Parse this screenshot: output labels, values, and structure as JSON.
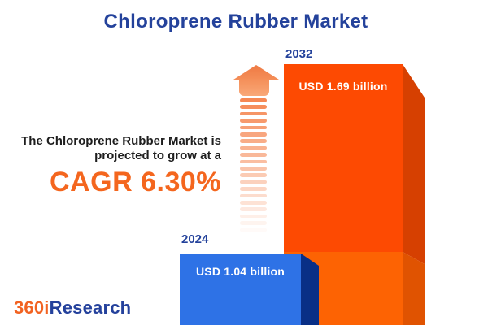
{
  "title": "Chloroprene Rubber Market",
  "annotation": {
    "line1": "The Chloroprene Rubber Market is",
    "line2": "projected to grow at a",
    "cagr_label": "CAGR 6.30%"
  },
  "chart_data": {
    "type": "bar",
    "title": "Chloroprene Rubber Market",
    "categories": [
      "2024",
      "2032"
    ],
    "values": [
      1.04,
      1.69
    ],
    "unit": "USD billion",
    "cagr_percent": 6.3,
    "ylim": [
      0,
      1.69
    ],
    "grid": false,
    "legend": false,
    "orientation": "vertical",
    "bars": [
      {
        "year": "2024",
        "value": 1.04,
        "value_label": "USD 1.04 billion",
        "front_color": "#2E72E6",
        "side_color": "#092F86"
      },
      {
        "year": "2032",
        "value": 1.69,
        "value_label": "USD 1.69 billion",
        "front_color": "#FD4A02",
        "side_color": "#D64001",
        "lower_front_color": "#FD6303",
        "lower_side_color": "#E05301"
      }
    ],
    "year_label_color": "#24429B",
    "value_label_color": "#FFFFFF"
  },
  "arrow": {
    "meaning": "growth-up-arrow",
    "color": "#F5824B",
    "stripe_count": 20
  },
  "logo": {
    "text_orange": "360i",
    "text_blue": "Research",
    "orange": "#F26322",
    "blue": "#24419C"
  },
  "colors": {
    "background": "#FFFFFF",
    "title": "#24429B",
    "annotation_text": "#1E1E1E",
    "cagr": "#F4661E"
  }
}
